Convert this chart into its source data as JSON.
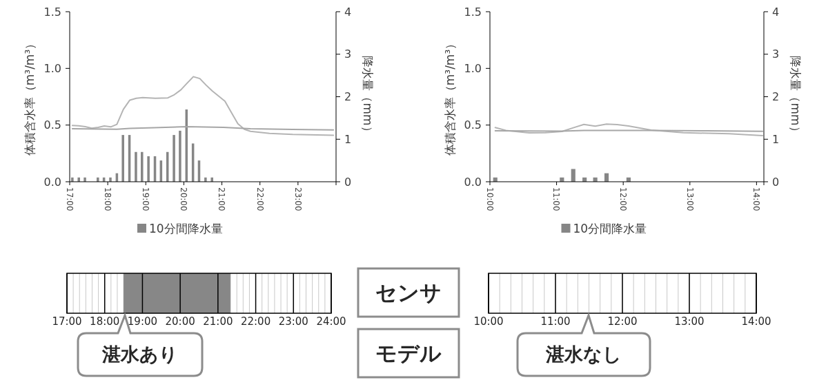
{
  "chart_data": [
    {
      "type": "line",
      "ylabel": "体積含水率（m³/m³）",
      "y2label": "降水量（mm）",
      "xlim": [
        17,
        24
      ],
      "xticks": [
        {
          "value": 17,
          "label": "17:00"
        },
        {
          "value": 18,
          "label": "18:00"
        },
        {
          "value": 19,
          "label": "19:00"
        },
        {
          "value": 20,
          "label": "20:00"
        },
        {
          "value": 21,
          "label": "21:00"
        },
        {
          "value": 22,
          "label": "22:00"
        },
        {
          "value": 23,
          "label": "23:00"
        }
      ],
      "ylim": [
        0,
        1.5
      ],
      "yticks": [
        {
          "value": 0,
          "label": "0.0"
        },
        {
          "value": 0.5,
          "label": "0.5"
        },
        {
          "value": 1,
          "label": "1.0"
        },
        {
          "value": 1.5,
          "label": "1.5"
        }
      ],
      "y2lim": [
        0,
        4
      ],
      "y2ticks": [
        0,
        1,
        2,
        3,
        4
      ],
      "legend": "bottom",
      "grid": false,
      "series": [
        {
          "name": "10分間降水量",
          "type": "bar",
          "axis": "y2",
          "color": "#868686",
          "x": [
            17.07,
            17.24,
            17.4,
            17.74,
            17.9,
            18.07,
            18.24,
            18.4,
            18.57,
            18.74,
            18.9,
            19.07,
            19.24,
            19.4,
            19.57,
            19.74,
            19.9,
            20.07,
            20.24,
            20.4,
            20.57,
            20.74
          ],
          "values": [
            0.1,
            0.1,
            0.1,
            0.1,
            0.1,
            0.1,
            0.2,
            1.1,
            1.1,
            0.7,
            0.7,
            0.6,
            0.6,
            0.5,
            0.7,
            1.1,
            1.2,
            1.7,
            0.9,
            0.5,
            0.1,
            0.1
          ]
        },
        {
          "type": "line",
          "axis": "y",
          "color": "#b4b4b4",
          "x": [
            17.07,
            17.24,
            17.41,
            17.58,
            17.75,
            17.91,
            18.08,
            18.24,
            18.41,
            18.58,
            18.75,
            18.92,
            19.25,
            19.58,
            19.75,
            19.92,
            20.08,
            20.25,
            20.42,
            20.58,
            20.75,
            21.08,
            21.25,
            21.42,
            21.59,
            21.75,
            22.25,
            22.86,
            23.93
          ],
          "values": [
            0.496,
            0.494,
            0.486,
            0.472,
            0.48,
            0.492,
            0.484,
            0.506,
            0.638,
            0.72,
            0.736,
            0.742,
            0.736,
            0.74,
            0.768,
            0.81,
            0.868,
            0.927,
            0.91,
            0.854,
            0.8,
            0.711,
            0.61,
            0.512,
            0.463,
            0.445,
            0.427,
            0.417,
            0.41
          ]
        },
        {
          "type": "line",
          "axis": "y",
          "color": "#a6a6a6",
          "x": [
            17.07,
            18.24,
            18.58,
            19.22,
            20.08,
            21.04,
            21.75,
            22.86,
            23.93
          ],
          "values": [
            0.467,
            0.463,
            0.47,
            0.476,
            0.486,
            0.48,
            0.467,
            0.461,
            0.457
          ]
        }
      ]
    },
    {
      "type": "line",
      "ylabel": "体積含水率（m³/m³）",
      "y2label": "降水量（mm）",
      "xlim": [
        10,
        14.11
      ],
      "xticks": [
        {
          "value": 10,
          "label": "10:00"
        },
        {
          "value": 11,
          "label": "11:00"
        },
        {
          "value": 12,
          "label": "12:00"
        },
        {
          "value": 13,
          "label": "13:00"
        },
        {
          "value": 14,
          "label": "14:00"
        }
      ],
      "ylim": [
        0,
        1.5
      ],
      "yticks": [
        {
          "value": 0,
          "label": "0.0"
        },
        {
          "value": 0.5,
          "label": "0.5"
        },
        {
          "value": 1,
          "label": "1.0"
        },
        {
          "value": 1.5,
          "label": "1.5"
        }
      ],
      "y2lim": [
        0,
        4
      ],
      "y2ticks": [
        0,
        1,
        2,
        3,
        4
      ],
      "legend": "bottom",
      "grid": false,
      "series": [
        {
          "name": "10分間降水量",
          "type": "bar",
          "axis": "y2",
          "color": "#868686",
          "x": [
            10.08,
            11.08,
            11.25,
            11.42,
            11.58,
            11.75,
            12.08
          ],
          "values": [
            0.1,
            0.1,
            0.3,
            0.1,
            0.1,
            0.2,
            0.1
          ]
        },
        {
          "type": "line",
          "axis": "y",
          "color": "#b4b4b4",
          "x": [
            10.08,
            10.24,
            10.59,
            10.83,
            11.08,
            11.25,
            11.41,
            11.58,
            11.75,
            11.91,
            12.08,
            12.42,
            12.9,
            13.59,
            14.09
          ],
          "values": [
            0.478,
            0.453,
            0.431,
            0.433,
            0.443,
            0.476,
            0.506,
            0.49,
            0.508,
            0.504,
            0.492,
            0.455,
            0.433,
            0.423,
            0.407
          ]
        },
        {
          "type": "line",
          "axis": "y",
          "color": "#a6a6a6",
          "x": [
            10.08,
            11.08,
            11.41,
            12.42,
            13.25,
            14.09
          ],
          "values": [
            0.449,
            0.447,
            0.453,
            0.453,
            0.449,
            0.445
          ]
        }
      ]
    },
    {
      "type": "bar",
      "orientation": "horizontal",
      "categories": [
        null
      ],
      "base": [
        18.5
      ],
      "values": [
        2.83
      ],
      "color": "#878787",
      "xlim": [
        17,
        24
      ],
      "grid": "x",
      "xticks": [
        {
          "value": 17,
          "label": "17:00"
        },
        {
          "value": 18,
          "label": "18:00"
        },
        {
          "value": 19,
          "label": "19:00"
        },
        {
          "value": 20,
          "label": "20:00"
        },
        {
          "value": 21,
          "label": "21:00"
        },
        {
          "value": 22,
          "label": "22:00"
        },
        {
          "value": 23,
          "label": "23:00"
        },
        {
          "value": 24,
          "label": "24:00"
        }
      ],
      "annotations": [
        "湛水あり"
      ]
    },
    {
      "type": "bar",
      "orientation": "horizontal",
      "categories": [
        null
      ],
      "base": [
        null
      ],
      "values": [
        null
      ],
      "xlim": [
        10,
        14
      ],
      "grid": "x",
      "xticks": [
        {
          "value": 10,
          "label": "10:00"
        },
        {
          "value": 11,
          "label": "11:00"
        },
        {
          "value": 12,
          "label": "12:00"
        },
        {
          "value": 13,
          "label": "13:00"
        },
        {
          "value": 14,
          "label": "14:00"
        }
      ],
      "annotations": [
        "湛水なし"
      ]
    },
    {
      "type": "other",
      "annotations": [
        "センサ",
        "モデル"
      ]
    }
  ]
}
